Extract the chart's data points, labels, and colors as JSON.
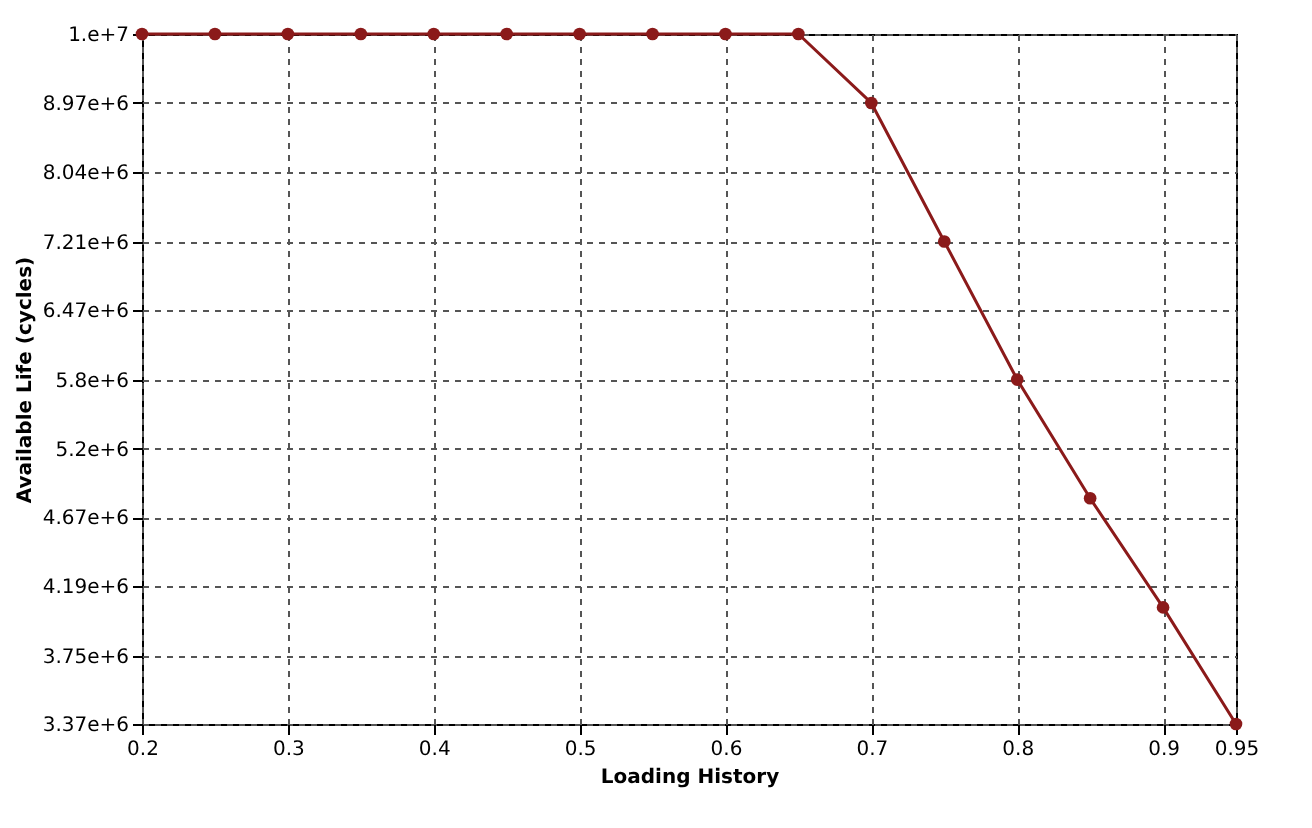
{
  "chart_data": {
    "type": "line",
    "xlabel": "Loading History",
    "ylabel": "Available Life (cycles)",
    "x": [
      0.2,
      0.25,
      0.3,
      0.35,
      0.4,
      0.45,
      0.5,
      0.55,
      0.6,
      0.65,
      0.7,
      0.75,
      0.8,
      0.85,
      0.9,
      0.95
    ],
    "series": [
      {
        "color": "#8b1a1a",
        "values": [
          10000000,
          10000000,
          10000000,
          10000000,
          10000000,
          10000000,
          10000000,
          10000000,
          10000000,
          10000000,
          8970000,
          7210000,
          5800000,
          4810000,
          4050000,
          3370000
        ]
      }
    ],
    "xlim": [
      0.2,
      0.95
    ],
    "xticks": [
      0.2,
      0.3,
      0.4,
      0.5,
      0.6,
      0.7,
      0.8,
      0.9,
      0.95
    ],
    "ylim": [
      3370000,
      10000000
    ],
    "yticks": [
      {
        "value": 3370000,
        "label": "3.37e+6"
      },
      {
        "value": 3750000,
        "label": "3.75e+6"
      },
      {
        "value": 4190000,
        "label": "4.19e+6"
      },
      {
        "value": 4670000,
        "label": "4.67e+6"
      },
      {
        "value": 5200000,
        "label": "5.2e+6"
      },
      {
        "value": 5800000,
        "label": "5.8e+6"
      },
      {
        "value": 6470000,
        "label": "6.47e+6"
      },
      {
        "value": 7210000,
        "label": "7.21e+6"
      },
      {
        "value": 8040000,
        "label": "8.04e+6"
      },
      {
        "value": 8970000,
        "label": "8.97e+6"
      },
      {
        "value": 10000000,
        "label": "1.e+7"
      }
    ],
    "log": true,
    "grid": true,
    "marker": "circle",
    "line_style": "solid"
  }
}
